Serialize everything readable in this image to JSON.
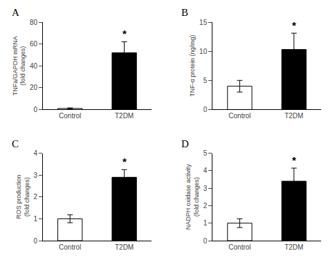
{
  "chart_data": [
    {
      "type": "bar",
      "title": "A",
      "categories": [
        "Control",
        "T2DM"
      ],
      "values": [
        1.0,
        52.0
      ],
      "errors": [
        0.5,
        10.0
      ],
      "colors": [
        "white",
        "black"
      ],
      "y_label": "TNFa/GAPDH mRNA\n(fold changes)",
      "ylim": [
        0,
        80
      ],
      "yticks": [
        0,
        20,
        40,
        60,
        80
      ],
      "grid": false,
      "annotations": [
        {
          "text": "*",
          "category": "T2DM"
        }
      ]
    },
    {
      "type": "bar",
      "title": "B",
      "categories": [
        "Control",
        "T2DM"
      ],
      "values": [
        4.0,
        10.3
      ],
      "errors": [
        1.0,
        2.8
      ],
      "colors": [
        "white",
        "black"
      ],
      "y_label": "TNF-α protein (ng/mg)",
      "ylim": [
        0,
        15
      ],
      "yticks": [
        0,
        5,
        10,
        15
      ],
      "grid": false,
      "annotations": [
        {
          "text": "*",
          "category": "T2DM"
        }
      ]
    },
    {
      "type": "bar",
      "title": "C",
      "categories": [
        "Control",
        "T2DM"
      ],
      "values": [
        1.0,
        2.9
      ],
      "errors": [
        0.18,
        0.35
      ],
      "colors": [
        "white",
        "black"
      ],
      "y_label": "ROS production\n(fold changes)",
      "ylim": [
        0,
        4
      ],
      "yticks": [
        0,
        1,
        2,
        3,
        4
      ],
      "grid": false,
      "annotations": [
        {
          "text": "*",
          "category": "T2DM"
        }
      ]
    },
    {
      "type": "bar",
      "title": "D",
      "categories": [
        "Control",
        "T2DM"
      ],
      "values": [
        1.0,
        3.4
      ],
      "errors": [
        0.25,
        0.75
      ],
      "colors": [
        "white",
        "black"
      ],
      "y_label": "NADPH oxidase activity\n(fold changes)",
      "ylim": [
        0,
        5
      ],
      "yticks": [
        0,
        1,
        2,
        3,
        4,
        5
      ],
      "grid": false,
      "annotations": [
        {
          "text": "*",
          "category": "T2DM"
        }
      ]
    }
  ]
}
